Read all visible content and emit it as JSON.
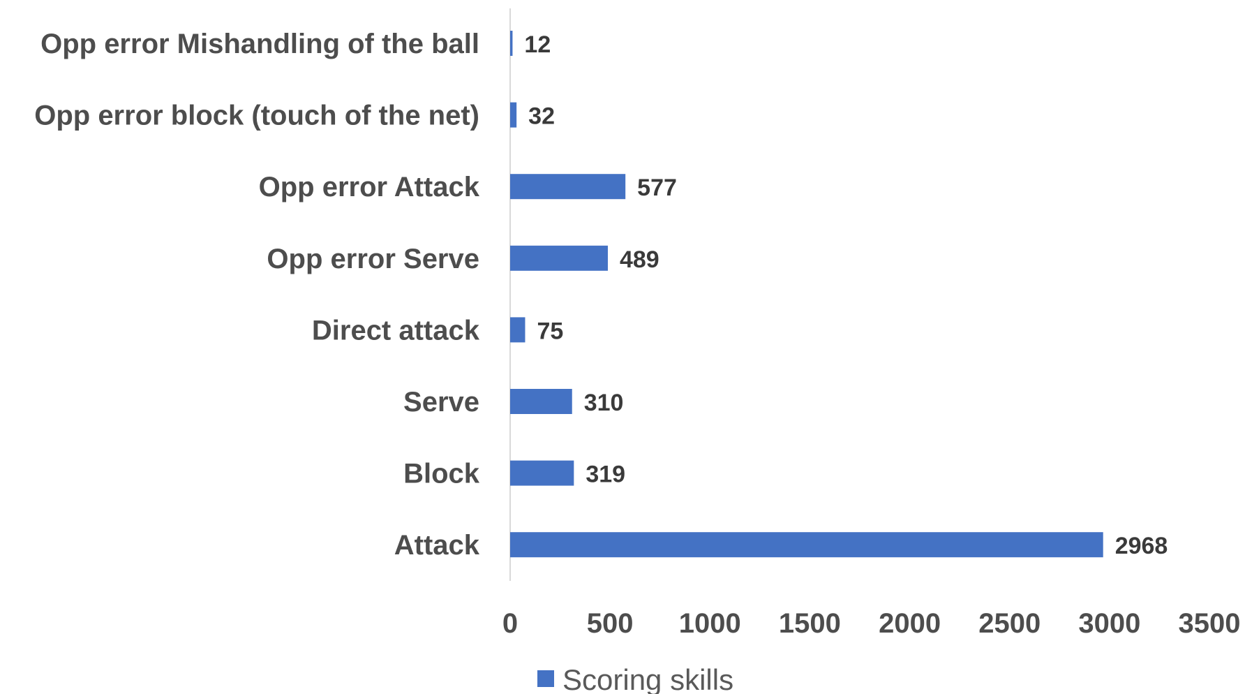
{
  "chart_data": {
    "type": "bar",
    "orientation": "horizontal",
    "categories": [
      "Opp error Mishandling of the ball",
      "Opp error block (touch of the net)",
      "Opp error Attack",
      "Opp error Serve",
      "Direct attack",
      "Serve",
      "Block",
      "Attack"
    ],
    "series": [
      {
        "name": "Scoring skills",
        "values": [
          12,
          32,
          577,
          489,
          75,
          310,
          319,
          2968
        ],
        "color": "#4472c4"
      }
    ],
    "data_labels": [
      "12",
      "32",
      "577",
      "489",
      "75",
      "310",
      "319",
      "2968"
    ],
    "xlim": [
      0,
      3500
    ],
    "x_ticks": [
      "0",
      "500",
      "1000",
      "1500",
      "2000",
      "2500",
      "3000",
      "3500"
    ],
    "title": "",
    "xlabel": "",
    "ylabel": "",
    "grid": false,
    "legend": {
      "position": "bottom",
      "label": "Scoring skills",
      "color": "#4472c4"
    },
    "colors": {
      "bar": "#4472c4",
      "axis_line": "#d9d9d9",
      "label_text": "#4d4d4d",
      "value_text": "#3a3a3a"
    }
  }
}
